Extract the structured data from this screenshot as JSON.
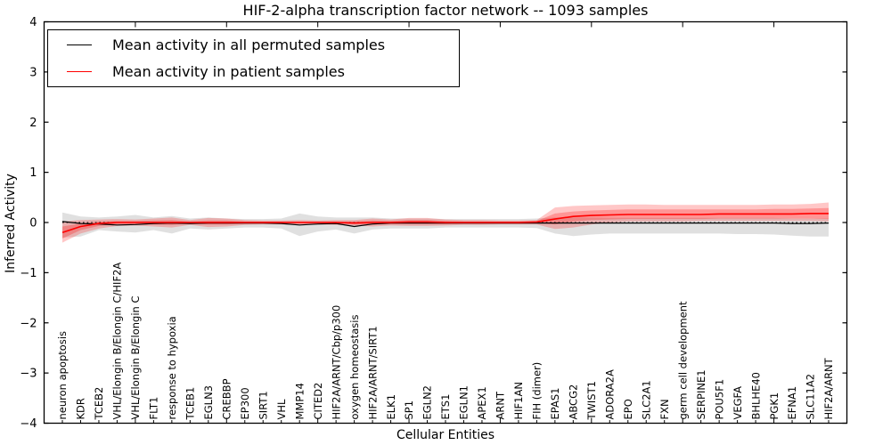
{
  "title": "HIF-2-alpha transcription factor network -- 1093 samples",
  "chart_data": {
    "type": "line",
    "title": "HIF-2-alpha transcription factor network -- 1093 samples",
    "xlabel": "Cellular Entities",
    "ylabel": "Inferred Activity",
    "ylim": [
      -4,
      4
    ],
    "yticks": [
      4,
      3,
      2,
      1,
      0,
      -1,
      -2,
      -3,
      -4
    ],
    "grid": false,
    "legend_position": "upper left",
    "legend": [
      {
        "label": "Mean activity in all permuted samples",
        "color": "#000000"
      },
      {
        "label": "Mean activity in patient samples",
        "color": "#ff0000"
      }
    ],
    "zero_line": {
      "y": 0,
      "style": "dotted",
      "color": "#000000"
    },
    "categories": [
      "neuron apoptosis",
      "KDR",
      "TCEB2",
      "VHL/Elongin B/Elongin C/HIF2A",
      "VHL/Elongin B/Elongin C",
      "FLT1",
      "response to hypoxia",
      "TCEB1",
      "EGLN3",
      "CREBBP",
      "EP300",
      "SIRT1",
      "VHL",
      "MMP14",
      "CITED2",
      "HIF2A/ARNT/Cbp/p300",
      "oxygen homeostasis",
      "HIF2A/ARNT/SIRT1",
      "ELK1",
      "SP1",
      "EGLN2",
      "ETS1",
      "EGLN1",
      "APEX1",
      "ARNT",
      "HIF1AN",
      "FIH (dimer)",
      "EPAS1",
      "ABCG2",
      "TWIST1",
      "ADORA2A",
      "EPO",
      "SLC2A1",
      "FXN",
      "germ cell development",
      "SERPINE1",
      "POU5F1",
      "VEGFA",
      "BHLHE40",
      "PGK1",
      "EFNA1",
      "SLC11A2",
      "HIF2A/ARNT"
    ],
    "series": [
      {
        "name": "Mean activity in all permuted samples",
        "color": "#000000",
        "width": 1.2,
        "values": [
          0.02,
          -0.02,
          -0.03,
          -0.05,
          -0.04,
          -0.02,
          -0.01,
          -0.02,
          -0.01,
          -0.01,
          -0.01,
          -0.01,
          -0.02,
          -0.05,
          -0.03,
          -0.02,
          -0.08,
          -0.03,
          -0.01,
          -0.01,
          -0.01,
          -0.01,
          -0.01,
          -0.01,
          -0.01,
          -0.01,
          -0.01,
          -0.01,
          -0.01,
          -0.01,
          -0.01,
          -0.01,
          -0.01,
          -0.01,
          -0.01,
          -0.01,
          -0.01,
          -0.01,
          -0.01,
          -0.01,
          -0.02,
          -0.02,
          -0.01
        ]
      },
      {
        "name": "Mean activity in patient samples",
        "color": "#ff0000",
        "width": 1.6,
        "values": [
          -0.2,
          -0.08,
          -0.02,
          0.0,
          0.0,
          0.0,
          0.0,
          0.0,
          0.0,
          0.0,
          0.0,
          0.0,
          0.0,
          0.0,
          0.0,
          0.0,
          -0.01,
          0.0,
          0.0,
          0.01,
          0.01,
          0.0,
          0.0,
          0.0,
          0.0,
          0.0,
          0.01,
          0.07,
          0.12,
          0.14,
          0.15,
          0.16,
          0.16,
          0.16,
          0.16,
          0.16,
          0.17,
          0.17,
          0.17,
          0.17,
          0.17,
          0.18,
          0.18
        ]
      }
    ],
    "bands": [
      {
        "name": "permuted-sample-range",
        "fill": "#999999",
        "opacity": 0.3,
        "upper": [
          0.2,
          0.12,
          0.1,
          0.12,
          0.15,
          0.1,
          0.13,
          0.08,
          0.1,
          0.08,
          0.07,
          0.07,
          0.08,
          0.18,
          0.12,
          0.1,
          0.1,
          0.1,
          0.08,
          0.08,
          0.08,
          0.07,
          0.07,
          0.07,
          0.07,
          0.07,
          0.08,
          0.1,
          0.1,
          0.1,
          0.09,
          0.09,
          0.09,
          0.09,
          0.09,
          0.09,
          0.09,
          0.09,
          0.09,
          0.09,
          0.08,
          0.08,
          0.08
        ],
        "lower": [
          -0.3,
          -0.28,
          -0.15,
          -0.18,
          -0.2,
          -0.15,
          -0.22,
          -0.12,
          -0.14,
          -0.12,
          -0.1,
          -0.1,
          -0.12,
          -0.27,
          -0.18,
          -0.14,
          -0.22,
          -0.14,
          -0.12,
          -0.12,
          -0.12,
          -0.1,
          -0.1,
          -0.1,
          -0.1,
          -0.1,
          -0.11,
          -0.22,
          -0.27,
          -0.24,
          -0.22,
          -0.22,
          -0.22,
          -0.22,
          -0.22,
          -0.22,
          -0.22,
          -0.23,
          -0.23,
          -0.24,
          -0.26,
          -0.28,
          -0.28
        ]
      },
      {
        "name": "patient-sample-range-outer",
        "fill": "#ff0000",
        "opacity": 0.22,
        "upper": [
          0.02,
          0.05,
          0.06,
          0.07,
          0.06,
          0.08,
          0.1,
          0.05,
          0.09,
          0.08,
          0.05,
          0.04,
          0.04,
          0.05,
          0.04,
          0.05,
          0.05,
          0.08,
          0.06,
          0.09,
          0.09,
          0.06,
          0.05,
          0.05,
          0.04,
          0.04,
          0.05,
          0.3,
          0.33,
          0.34,
          0.35,
          0.36,
          0.36,
          0.35,
          0.35,
          0.35,
          0.35,
          0.35,
          0.35,
          0.36,
          0.36,
          0.37,
          0.4
        ],
        "lower": [
          -0.4,
          -0.22,
          -0.12,
          -0.07,
          -0.06,
          -0.08,
          -0.1,
          -0.05,
          -0.09,
          -0.08,
          -0.05,
          -0.04,
          -0.04,
          -0.05,
          -0.04,
          -0.05,
          -0.06,
          -0.08,
          -0.06,
          -0.07,
          -0.07,
          -0.06,
          -0.05,
          -0.05,
          -0.04,
          -0.04,
          -0.04,
          -0.13,
          -0.1,
          -0.04,
          0.0,
          0.02,
          0.02,
          0.02,
          0.02,
          0.03,
          0.03,
          0.03,
          0.03,
          0.03,
          0.03,
          0.03,
          0.02
        ]
      },
      {
        "name": "patient-sample-range-inner",
        "fill": "#ff0000",
        "opacity": 0.25,
        "upper": [
          -0.08,
          -0.02,
          0.02,
          0.03,
          0.03,
          0.04,
          0.05,
          0.02,
          0.04,
          0.04,
          0.02,
          0.02,
          0.02,
          0.02,
          0.02,
          0.02,
          0.02,
          0.04,
          0.03,
          0.05,
          0.05,
          0.03,
          0.02,
          0.02,
          0.02,
          0.02,
          0.03,
          0.18,
          0.22,
          0.24,
          0.25,
          0.26,
          0.26,
          0.26,
          0.26,
          0.26,
          0.26,
          0.26,
          0.26,
          0.27,
          0.27,
          0.28,
          0.29
        ],
        "lower": [
          -0.32,
          -0.15,
          -0.07,
          -0.03,
          -0.03,
          -0.04,
          -0.05,
          -0.02,
          -0.04,
          -0.04,
          -0.02,
          -0.02,
          -0.02,
          -0.02,
          -0.02,
          -0.02,
          -0.04,
          -0.04,
          -0.03,
          -0.03,
          -0.03,
          -0.03,
          -0.02,
          -0.02,
          -0.02,
          -0.02,
          -0.01,
          -0.04,
          0.02,
          0.05,
          0.06,
          0.07,
          0.07,
          0.07,
          0.07,
          0.07,
          0.08,
          0.08,
          0.08,
          0.08,
          0.08,
          0.08,
          0.07
        ]
      }
    ]
  }
}
